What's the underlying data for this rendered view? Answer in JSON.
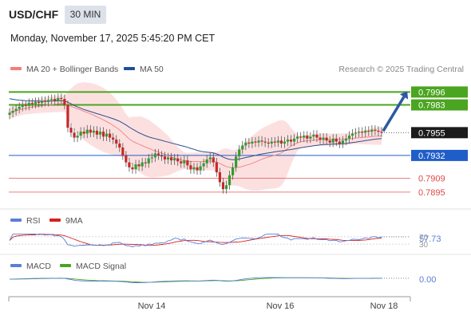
{
  "header": {
    "symbol": "USD/CHF",
    "timeframe": "30 MIN",
    "datetime": "Monday, November 17, 2025 5:45:20 PM CET"
  },
  "legend": {
    "ma20": {
      "label": "MA 20 + Bollinger Bands",
      "color": "#f47c7c"
    },
    "ma50": {
      "label": "MA 50",
      "color": "#1f4e99"
    },
    "credit": "Research © 2025 Trading Central"
  },
  "chart_data": [
    {
      "type": "candlestick",
      "ylim": [
        0.7878,
        0.801
      ],
      "last_price": "0.7955",
      "levels": [
        {
          "value": 0.7996,
          "label": "0.7996",
          "kind": "resistance",
          "color": "#4aa520"
        },
        {
          "value": 0.7983,
          "label": "0.7983",
          "kind": "resistance",
          "color": "#4aa520"
        },
        {
          "value": 0.7932,
          "label": "0.7932",
          "kind": "pivot",
          "color": "#1f5ec9"
        },
        {
          "value": 0.7909,
          "label": "0.7909",
          "kind": "support",
          "color": "#e04848"
        },
        {
          "value": 0.7895,
          "label": "0.7895",
          "kind": "support",
          "color": "#e04848"
        }
      ],
      "closes": [
        0.7975,
        0.7977,
        0.7979,
        0.7981,
        0.7983,
        0.7982,
        0.7985,
        0.7984,
        0.7986,
        0.7985,
        0.7987,
        0.7986,
        0.7988,
        0.7989,
        0.7987,
        0.799,
        0.7989,
        0.7983,
        0.796,
        0.7955,
        0.795,
        0.7952,
        0.7956,
        0.7954,
        0.7958,
        0.7955,
        0.7957,
        0.7953,
        0.7956,
        0.7951,
        0.7954,
        0.795,
        0.7948,
        0.7944,
        0.794,
        0.7932,
        0.7925,
        0.792,
        0.7918,
        0.7923,
        0.7921,
        0.7925,
        0.7924,
        0.7929,
        0.793,
        0.7934,
        0.7932,
        0.7931,
        0.7928,
        0.793,
        0.7927,
        0.7929,
        0.7926,
        0.7924,
        0.7927,
        0.7922,
        0.7918,
        0.792,
        0.7917,
        0.7921,
        0.7924,
        0.7928,
        0.793,
        0.7925,
        0.7915,
        0.7905,
        0.7898,
        0.7902,
        0.7912,
        0.792,
        0.7931,
        0.7938,
        0.7942,
        0.7945,
        0.7944,
        0.7946,
        0.7945,
        0.7947,
        0.7946,
        0.7945,
        0.7944,
        0.7946,
        0.7945,
        0.7947,
        0.7944,
        0.7946,
        0.7948,
        0.7946,
        0.7949,
        0.7951,
        0.795,
        0.7952,
        0.7949,
        0.7951,
        0.7953,
        0.795,
        0.7948,
        0.795,
        0.7947,
        0.7945,
        0.7949,
        0.7946,
        0.7944,
        0.7947,
        0.7949,
        0.7952,
        0.7954,
        0.7955,
        0.7956,
        0.7955,
        0.7957,
        0.7956,
        0.7958,
        0.7957,
        0.7956,
        0.7955
      ],
      "ma50_start": 0.799,
      "forecast_arrow_target": 0.7996
    },
    {
      "type": "line",
      "name": "RSI panel",
      "series": [
        {
          "name": "RSI",
          "color": "#5b7fd6"
        },
        {
          "name": "9MA",
          "color": "#d42020"
        }
      ],
      "levels": [
        "70",
        "30"
      ],
      "last_value": "57.73",
      "ylim": [
        0,
        100
      ]
    },
    {
      "type": "line",
      "name": "MACD panel",
      "series": [
        {
          "name": "MACD",
          "color": "#5b7fd6"
        },
        {
          "name": "MACD Signal",
          "color": "#4aa520"
        }
      ],
      "last_value": "0.00"
    }
  ],
  "x_axis": {
    "ticks": [
      "Nov 14",
      "Nov 16",
      "Nov 18"
    ]
  }
}
